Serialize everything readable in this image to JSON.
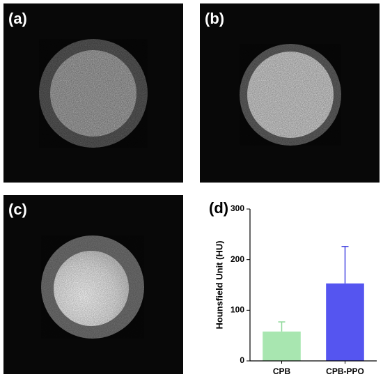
{
  "panels": [
    {
      "label": "(a)"
    },
    {
      "label": "(b)"
    },
    {
      "label": "(c)"
    }
  ],
  "chart_data": {
    "type": "bar",
    "panel_label": "(d)",
    "y_label": "Hounsfield Unit (HU)",
    "categories": [
      "CPB",
      "CPB-PPO"
    ],
    "values": [
      58,
      153
    ],
    "errors": [
      19,
      73
    ],
    "colors": [
      "#a8e6b0",
      "#5555f0"
    ],
    "error_colors": [
      "#8fd89a",
      "#4444e0"
    ],
    "ylim": [
      0,
      300
    ],
    "yticks": [
      0,
      100,
      200,
      300
    ]
  }
}
